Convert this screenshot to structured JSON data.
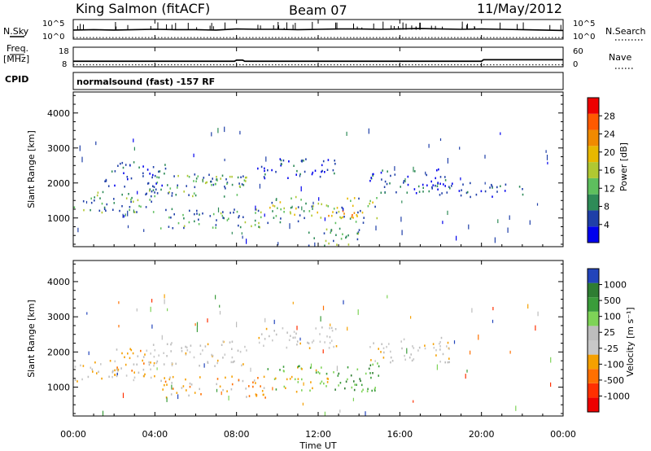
{
  "header": {
    "station": "King Salmon (fitACF)",
    "beam": "Beam 07",
    "date": "11/May/2012"
  },
  "side_labels": {
    "nsky": "N.Sky",
    "nsearch": "N.Search",
    "freq": "Freq.",
    "freq_unit": "[MHz]",
    "nave": "Nave",
    "cpid": "CPID"
  },
  "cpid_text": "normalsound (fast) -157 RF",
  "xaxis": {
    "label": "Time UT",
    "ticks": [
      "00:00",
      "04:00",
      "08:00",
      "12:00",
      "16:00",
      "20:00",
      "00:00"
    ]
  },
  "chart_data": [
    {
      "type": "line",
      "panel": "noise",
      "left_ticks": [
        "10^5",
        "10^0"
      ],
      "right_ticks": [
        "10^5",
        "10^0"
      ],
      "series": [
        {
          "name": "N.Sky",
          "style": "solid",
          "x": [
            0,
            1,
            2,
            3,
            4,
            5,
            6,
            7,
            8,
            9,
            10,
            11,
            12,
            13,
            14,
            15,
            16,
            17,
            18,
            19,
            20,
            21,
            22,
            23,
            24
          ],
          "y_log10": [
            2.3,
            2.4,
            2.3,
            2.4,
            2.5,
            2.4,
            2.4,
            2.3,
            2.6,
            2.5,
            2.5,
            2.4,
            2.5,
            2.6,
            2.6,
            2.5,
            2.6,
            2.7,
            2.6,
            2.5,
            2.6,
            2.5,
            2.4,
            2.3,
            2.2
          ]
        },
        {
          "name": "N.Search",
          "style": "dotted",
          "x": [
            0,
            2,
            4,
            6,
            8,
            10,
            12,
            14,
            16,
            18,
            20,
            22,
            24
          ],
          "y_log10": [
            0.4,
            0.4,
            0.4,
            0.4,
            0.4,
            0.4,
            0.4,
            0.4,
            0.4,
            0.4,
            0.4,
            0.4,
            0.4
          ]
        }
      ]
    },
    {
      "type": "line",
      "panel": "frequency",
      "left_ticks": [
        "18",
        "8"
      ],
      "right_ticks": [
        "60",
        "0"
      ],
      "series": [
        {
          "name": "Freq.",
          "style": "solid",
          "x": [
            0,
            7.9,
            8.0,
            8.3,
            8.4,
            20.0,
            20.1,
            24
          ],
          "y": [
            10.8,
            10.8,
            11.4,
            11.4,
            10.8,
            10.8,
            11.6,
            11.6
          ]
        },
        {
          "name": "Nave",
          "style": "dotted",
          "x": [
            0,
            24
          ],
          "y": [
            6,
            6
          ]
        }
      ]
    },
    {
      "type": "heatmap",
      "panel": "power",
      "ylabel": "Slant Range [km]",
      "xlabel": "Time UT",
      "ylim": [
        180,
        4600
      ],
      "xlim": [
        0,
        24
      ],
      "yticks": [
        1000,
        2000,
        3000,
        4000
      ],
      "colorbar": {
        "label": "Power [dB]",
        "ticks": [
          "4",
          "8",
          "12",
          "16",
          "20",
          "24",
          "28"
        ],
        "colors": [
          "#0000ee",
          "#1f3fa8",
          "#2e8b57",
          "#5ebf5e",
          "#b0c832",
          "#e8b800",
          "#f08a00",
          "#ff5a00",
          "#ee0000"
        ]
      },
      "regions": [
        {
          "x0": 0.0,
          "x1": 4.0,
          "y0": 1150,
          "y1": 1750,
          "level": "mid"
        },
        {
          "x0": 3.5,
          "x1": 8.5,
          "y0": 1600,
          "y1": 2300,
          "level": "mid"
        },
        {
          "x0": 6.0,
          "x1": 8.5,
          "y0": 1900,
          "y1": 2200,
          "level": "mid"
        },
        {
          "x0": 1.5,
          "x1": 4.5,
          "y0": 1800,
          "y1": 2600,
          "level": "low"
        },
        {
          "x0": 4.2,
          "x1": 9.5,
          "y0": 700,
          "y1": 1300,
          "level": "mid"
        },
        {
          "x0": 9.5,
          "x1": 15.0,
          "y0": 850,
          "y1": 1600,
          "level": "high"
        },
        {
          "x0": 12.3,
          "x1": 14.0,
          "y0": 950,
          "y1": 1250,
          "level": "peak"
        },
        {
          "x0": 9.0,
          "x1": 13.0,
          "y0": 2100,
          "y1": 2700,
          "level": "low"
        },
        {
          "x0": 14.5,
          "x1": 18.5,
          "y0": 1700,
          "y1": 2400,
          "level": "low"
        },
        {
          "x0": 17.0,
          "x1": 22.0,
          "y0": 1600,
          "y1": 2000,
          "level": "low"
        },
        {
          "x0": 11.5,
          "x1": 14.5,
          "y0": 200,
          "y1": 700,
          "level": "mid"
        },
        {
          "x0": 0.0,
          "x1": 24.0,
          "y0": 200,
          "y1": 3600,
          "level": "sparse"
        }
      ]
    },
    {
      "type": "heatmap",
      "panel": "velocity",
      "ylabel": "Slant Range [km]",
      "xlabel": "Time UT",
      "ylim": [
        180,
        4600
      ],
      "xlim": [
        0,
        24
      ],
      "yticks": [
        1000,
        2000,
        3000,
        4000
      ],
      "colorbar": {
        "label": "Velocity [m s⁻¹]",
        "ticks": [
          "1000",
          "500",
          "100",
          "25",
          "-25",
          "-100",
          "-500",
          "-1000"
        ],
        "colors": [
          "#2244bb",
          "#2e7d32",
          "#3a9c3a",
          "#7ed357",
          "#bdbdbd",
          "#c8c8c8",
          "#f5a000",
          "#ff7000",
          "#ff3000",
          "#ee0000"
        ]
      },
      "regions": [
        {
          "x0": 0.0,
          "x1": 4.0,
          "y0": 1150,
          "y1": 1750,
          "level": "ground"
        },
        {
          "x0": 3.5,
          "x1": 8.5,
          "y0": 1600,
          "y1": 2300,
          "level": "ground"
        },
        {
          "x0": 2.0,
          "x1": 3.5,
          "y0": 1300,
          "y1": 2100,
          "level": "neg"
        },
        {
          "x0": 4.2,
          "x1": 9.5,
          "y0": 700,
          "y1": 1300,
          "level": "neg"
        },
        {
          "x0": 9.5,
          "x1": 12.5,
          "y0": 850,
          "y1": 1600,
          "level": "pos_light"
        },
        {
          "x0": 12.5,
          "x1": 15.0,
          "y0": 850,
          "y1": 1700,
          "level": "pos_dark"
        },
        {
          "x0": 9.0,
          "x1": 13.0,
          "y0": 2100,
          "y1": 2700,
          "level": "ground"
        },
        {
          "x0": 14.5,
          "x1": 18.5,
          "y0": 1700,
          "y1": 2400,
          "level": "ground"
        },
        {
          "x0": 0.0,
          "x1": 24.0,
          "y0": 200,
          "y1": 3600,
          "level": "sparse_mix"
        }
      ]
    }
  ]
}
